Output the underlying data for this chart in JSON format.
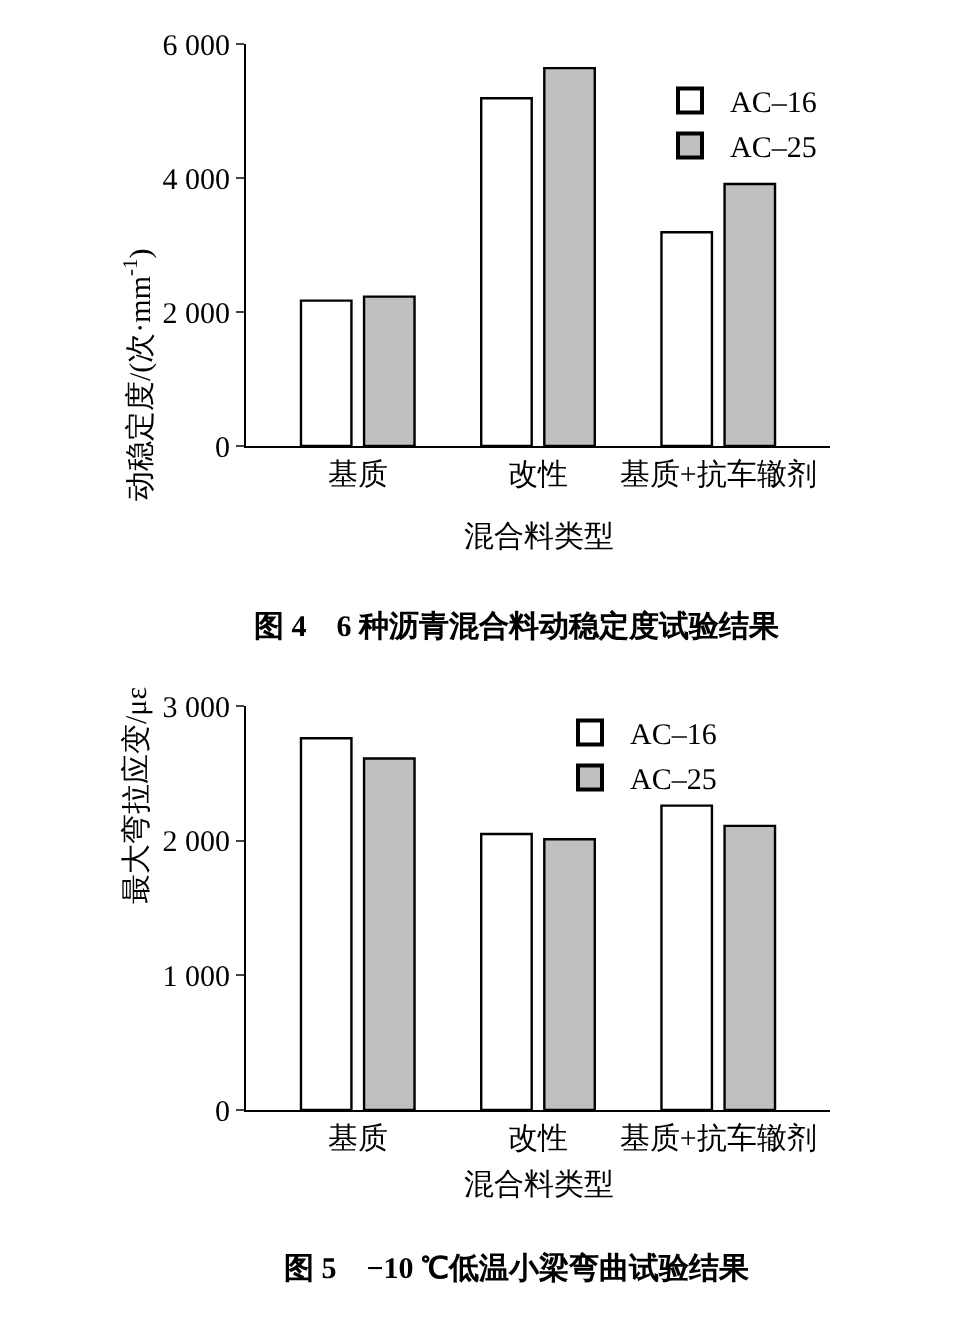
{
  "chart_data": [
    {
      "type": "bar",
      "title": "图 4　6 种沥青混合料动稳定度试验结果",
      "xlabel": "混合料类型",
      "ylabel": "动稳定度/(次·mm$^{-1}$)",
      "categories": [
        "基质",
        "改性",
        "基质+抗车辙剂"
      ],
      "series": [
        {
          "name": "AC–16",
          "color": "#ffffff",
          "values": [
            2170,
            5190,
            3190
          ]
        },
        {
          "name": "AC–25",
          "color": "#c0c0c0",
          "values": [
            2230,
            5640,
            3910
          ]
        }
      ],
      "ylim": [
        0,
        6000
      ],
      "yticks": [
        0,
        {
          "value": 2000,
          "label": "2 000"
        },
        {
          "value": 4000,
          "label": "4 000"
        },
        {
          "value": 6000,
          "label": "6 000"
        }
      ],
      "grid": false,
      "legend": "top right"
    },
    {
      "type": "bar",
      "title": "图 5　−10 ℃低温小梁弯曲试验结果",
      "xlabel": "混合料类型",
      "ylabel": "最大弯拉应变/με",
      "categories": [
        "基质",
        "改性",
        "基质+抗车辙剂"
      ],
      "series": [
        {
          "name": "AC–16",
          "color": "#ffffff",
          "values": [
            2760,
            2050,
            2260
          ]
        },
        {
          "name": "AC–25",
          "color": "#c0c0c0",
          "values": [
            2610,
            2010,
            2110
          ]
        }
      ],
      "ylim": [
        0,
        3000
      ],
      "yticks": [
        0,
        {
          "value": 1000,
          "label": "1 000"
        },
        {
          "value": 2000,
          "label": "2 000"
        },
        {
          "value": 3000,
          "label": "3 000"
        }
      ],
      "grid": false,
      "legend": "top right"
    }
  ]
}
